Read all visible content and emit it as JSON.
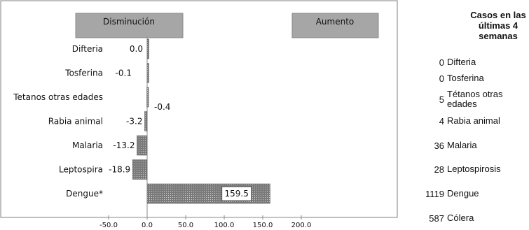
{
  "chart_data": {
    "type": "bar",
    "orientation": "horizontal",
    "categories": [
      "Difteria",
      "Tosferina",
      "Tetanos otras edades",
      "Rabia animal",
      "Malaria",
      "Leptospira",
      "Dengue*"
    ],
    "values": [
      0.0,
      -0.1,
      -0.4,
      -3.2,
      -13.2,
      -18.9,
      159.5
    ],
    "value_labels": [
      "0.0",
      "-0.1",
      "-0.4",
      "-3.2",
      "-13.2",
      "-18.9",
      "159.5"
    ],
    "xlim": [
      -50,
      200
    ],
    "x_ticks": [
      "-50.0",
      "0.0",
      "50.0",
      "100.0",
      "150.0",
      "200.0"
    ],
    "x_tick_values": [
      -50,
      0,
      50,
      100,
      150,
      200
    ],
    "header_boxes": {
      "left": "Disminución",
      "right": "Aumento"
    },
    "bar_color": "#8c8c8c",
    "header_color": "#a6a6a6",
    "grid": false
  },
  "side_table": {
    "title_lines": [
      "Casos en las",
      "últimas 4",
      "semanas"
    ],
    "rows": [
      {
        "count": "0",
        "name": "Difteria"
      },
      {
        "count": "0",
        "name": "Tosferina"
      },
      {
        "count": "5",
        "name": "Tétanos otras edades"
      },
      {
        "count": "4",
        "name": "Rabia animal"
      },
      {
        "count": "36",
        "name": "Malaria"
      },
      {
        "count": "28",
        "name": "Leptospirosis"
      },
      {
        "count": "1119",
        "name": "Dengue"
      },
      {
        "count": "587",
        "name": "Cólera"
      }
    ]
  }
}
